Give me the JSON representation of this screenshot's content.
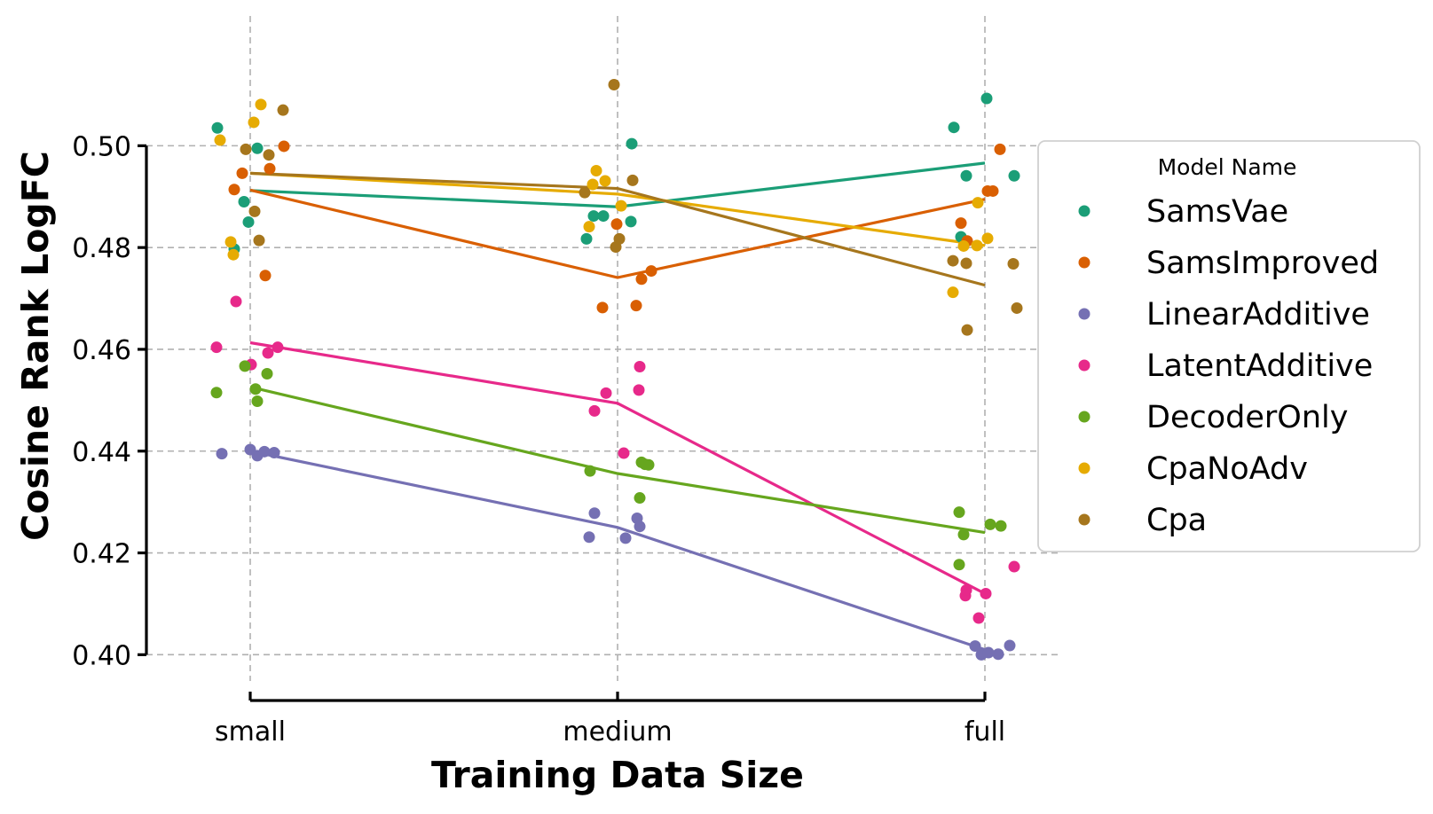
{
  "chart_data": {
    "type": "scatter",
    "title": "",
    "xlabel": "Training Data Size",
    "ylabel": "Cosine Rank LogFC",
    "categories": [
      "small",
      "medium",
      "full"
    ],
    "ylim": [
      0.391,
      0.5255
    ],
    "yticks": [
      "0.40",
      "0.42",
      "0.44",
      "0.46",
      "0.48",
      "0.50"
    ],
    "ytick_values": [
      0.4,
      0.42,
      0.44,
      0.46,
      0.48,
      0.5
    ],
    "grid": true,
    "legend": {
      "title": "Model Name",
      "placement": "right"
    },
    "series": [
      {
        "name": "SamsVae",
        "color": "#1b9e77",
        "mean": [
          0.4912,
          0.488,
          0.4966
        ],
        "points": [
          [
            -0.37,
            0.5035
          ],
          [
            -0.18,
            0.4797
          ],
          [
            -0.07,
            0.489
          ],
          [
            -0.02,
            0.485
          ],
          [
            0.08,
            0.4995
          ],
          [
            -0.35,
            0.4817
          ],
          [
            -0.27,
            0.4862
          ],
          [
            -0.16,
            0.4862
          ],
          [
            0.15,
            0.4851
          ],
          [
            0.16,
            0.5004
          ],
          [
            -0.35,
            0.5036
          ],
          [
            -0.27,
            0.4821
          ],
          [
            -0.21,
            0.4941
          ],
          [
            0.02,
            0.5093
          ],
          [
            0.33,
            0.4941
          ]
        ]
      },
      {
        "name": "SamsImproved",
        "color": "#d95f02",
        "mean": [
          0.4913,
          0.4741,
          0.4895
        ],
        "points": [
          [
            -0.18,
            0.4914
          ],
          [
            -0.09,
            0.4946
          ],
          [
            0.17,
            0.4745
          ],
          [
            0.22,
            0.4955
          ],
          [
            0.38,
            0.4999
          ],
          [
            -0.17,
            0.4682
          ],
          [
            -0.01,
            0.4846
          ],
          [
            0.21,
            0.4686
          ],
          [
            0.27,
            0.4738
          ],
          [
            0.38,
            0.4754
          ],
          [
            -0.27,
            0.4848
          ],
          [
            -0.2,
            0.4813
          ],
          [
            0.03,
            0.4911
          ],
          [
            0.09,
            0.4911
          ],
          [
            0.17,
            0.4993
          ]
        ]
      },
      {
        "name": "LinearAdditive",
        "color": "#7570b3",
        "mean": [
          0.44,
          0.425,
          0.401
        ],
        "points": [
          [
            -0.32,
            0.4395
          ],
          [
            0.0,
            0.4403
          ],
          [
            0.08,
            0.4391
          ],
          [
            0.16,
            0.4399
          ],
          [
            0.27,
            0.4397
          ],
          [
            -0.32,
            0.4231
          ],
          [
            -0.26,
            0.4278
          ],
          [
            0.09,
            0.4229
          ],
          [
            0.22,
            0.4268
          ],
          [
            0.25,
            0.4252
          ],
          [
            -0.11,
            0.4017
          ],
          [
            -0.04,
            0.4
          ],
          [
            0.04,
            0.4004
          ],
          [
            0.15,
            0.4001
          ],
          [
            0.28,
            0.4018
          ]
        ]
      },
      {
        "name": "LatentAdditive",
        "color": "#e7298a",
        "mean": [
          0.4613,
          0.4494,
          0.412
        ],
        "points": [
          [
            -0.38,
            0.4604
          ],
          [
            -0.16,
            0.4694
          ],
          [
            0.01,
            0.457
          ],
          [
            0.2,
            0.4593
          ],
          [
            0.31,
            0.4604
          ],
          [
            -0.26,
            0.4479
          ],
          [
            -0.13,
            0.4514
          ],
          [
            0.07,
            0.4396
          ],
          [
            0.24,
            0.452
          ],
          [
            0.25,
            0.4566
          ],
          [
            -0.22,
            0.4116
          ],
          [
            -0.21,
            0.4127
          ],
          [
            -0.07,
            0.4072
          ],
          [
            0.01,
            0.412
          ],
          [
            0.33,
            0.4173
          ]
        ]
      },
      {
        "name": "DecoderOnly",
        "color": "#66a61e",
        "mean": [
          0.4526,
          0.4356,
          0.424
        ],
        "points": [
          [
            -0.38,
            0.4515
          ],
          [
            -0.06,
            0.4567
          ],
          [
            0.06,
            0.4522
          ],
          [
            0.08,
            0.4498
          ],
          [
            0.19,
            0.4552
          ],
          [
            -0.31,
            0.4361
          ],
          [
            0.25,
            0.4308
          ],
          [
            0.27,
            0.4378
          ],
          [
            0.31,
            0.4374
          ],
          [
            0.35,
            0.4373
          ],
          [
            -0.29,
            0.428
          ],
          [
            -0.29,
            0.4177
          ],
          [
            -0.24,
            0.4236
          ],
          [
            0.06,
            0.4256
          ],
          [
            0.18,
            0.4253
          ]
        ]
      },
      {
        "name": "CpaNoAdv",
        "color": "#e6ab02",
        "mean": [
          0.4946,
          0.4905,
          0.4804
        ],
        "points": [
          [
            -0.34,
            0.5011
          ],
          [
            -0.22,
            0.4811
          ],
          [
            -0.19,
            0.4786
          ],
          [
            0.04,
            0.5046
          ],
          [
            0.12,
            0.5081
          ],
          [
            -0.32,
            0.4841
          ],
          [
            -0.28,
            0.4924
          ],
          [
            -0.24,
            0.4951
          ],
          [
            -0.14,
            0.4931
          ],
          [
            0.04,
            0.4882
          ],
          [
            -0.36,
            0.4712
          ],
          [
            -0.24,
            0.4803
          ],
          [
            -0.09,
            0.4804
          ],
          [
            -0.08,
            0.4888
          ],
          [
            0.03,
            0.4818
          ]
        ]
      },
      {
        "name": "Cpa",
        "color": "#a6761d",
        "mean": [
          0.4946,
          0.4916,
          0.4726
        ],
        "points": [
          [
            -0.05,
            0.4993
          ],
          [
            0.05,
            0.4871
          ],
          [
            0.1,
            0.4814
          ],
          [
            0.21,
            0.4982
          ],
          [
            0.37,
            0.507
          ],
          [
            -0.37,
            0.4908
          ],
          [
            -0.04,
            0.512
          ],
          [
            -0.02,
            0.4801
          ],
          [
            0.02,
            0.4817
          ],
          [
            0.17,
            0.4932
          ],
          [
            -0.36,
            0.4774
          ],
          [
            -0.2,
            0.4638
          ],
          [
            -0.21,
            0.4769
          ],
          [
            0.32,
            0.4768
          ],
          [
            0.36,
            0.4681
          ]
        ]
      }
    ]
  }
}
